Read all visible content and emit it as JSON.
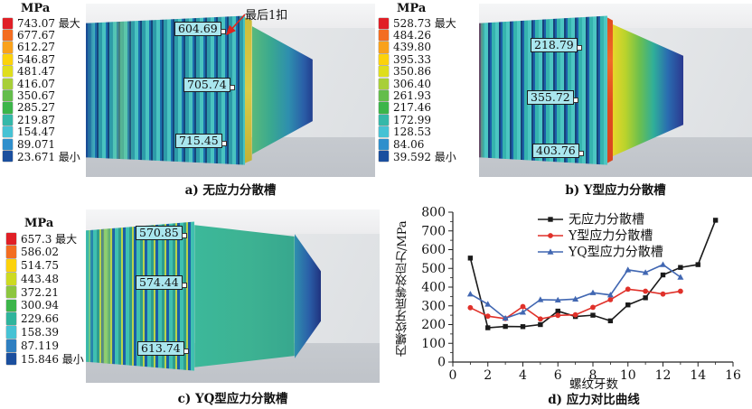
{
  "panels": [
    {
      "id": "a",
      "caption": "a) 无应力分散槽",
      "annotation": "最后1扣",
      "colorbar": {
        "unit": "MPa",
        "entries": [
          {
            "v": "743.07",
            "tag": "最大",
            "c": "#e01f26"
          },
          {
            "v": "677.67",
            "tag": "",
            "c": "#f36d21"
          },
          {
            "v": "612.27",
            "tag": "",
            "c": "#f9a11b"
          },
          {
            "v": "546.87",
            "tag": "",
            "c": "#fcd20b"
          },
          {
            "v": "481.47",
            "tag": "",
            "c": "#dfde1c"
          },
          {
            "v": "416.07",
            "tag": "",
            "c": "#a8cf38"
          },
          {
            "v": "350.67",
            "tag": "",
            "c": "#64bd4b"
          },
          {
            "v": "285.27",
            "tag": "",
            "c": "#3cb54a"
          },
          {
            "v": "219.87",
            "tag": "",
            "c": "#35b8a9"
          },
          {
            "v": "154.47",
            "tag": "",
            "c": "#46c2d4"
          },
          {
            "v": "89.071",
            "tag": "",
            "c": "#2f8fcc"
          },
          {
            "v": "23.671",
            "tag": "最小",
            "c": "#1b4f9e"
          }
        ]
      },
      "probes": [
        "604.69",
        "705.74",
        "715.45"
      ]
    },
    {
      "id": "b",
      "caption": "b) Y型应力分散槽",
      "colorbar": {
        "unit": "MPa",
        "entries": [
          {
            "v": "528.73",
            "tag": "最大",
            "c": "#e01f26"
          },
          {
            "v": "484.26",
            "tag": "",
            "c": "#f36d21"
          },
          {
            "v": "439.80",
            "tag": "",
            "c": "#f9a11b"
          },
          {
            "v": "395.33",
            "tag": "",
            "c": "#fcd20b"
          },
          {
            "v": "350.86",
            "tag": "",
            "c": "#dfde1c"
          },
          {
            "v": "306.40",
            "tag": "",
            "c": "#a8cf38"
          },
          {
            "v": "261.93",
            "tag": "",
            "c": "#64bd4b"
          },
          {
            "v": "217.46",
            "tag": "",
            "c": "#3cb54a"
          },
          {
            "v": "172.99",
            "tag": "",
            "c": "#35b8a9"
          },
          {
            "v": "128.53",
            "tag": "",
            "c": "#46c2d4"
          },
          {
            "v": "84.06",
            "tag": "",
            "c": "#2f8fcc"
          },
          {
            "v": "39.592",
            "tag": "最小",
            "c": "#1b4f9e"
          }
        ]
      },
      "probes": [
        "218.79",
        "355.72",
        "403.76"
      ]
    },
    {
      "id": "c",
      "caption": "c) YQ型应力分散槽",
      "colorbar": {
        "unit": "MPa",
        "entries": [
          {
            "v": "657.3",
            "tag": "最大",
            "c": "#e01f26"
          },
          {
            "v": "586.02",
            "tag": "",
            "c": "#f36d21"
          },
          {
            "v": "514.75",
            "tag": "",
            "c": "#fcd20b"
          },
          {
            "v": "443.48",
            "tag": "",
            "c": "#cdda21"
          },
          {
            "v": "372.21",
            "tag": "",
            "c": "#8cc63f"
          },
          {
            "v": "300.94",
            "tag": "",
            "c": "#3cb54a"
          },
          {
            "v": "229.66",
            "tag": "",
            "c": "#2fb49c"
          },
          {
            "v": "158.39",
            "tag": "",
            "c": "#46c2d4"
          },
          {
            "v": "87.119",
            "tag": "",
            "c": "#2f7fc1"
          },
          {
            "v": "15.846",
            "tag": "最小",
            "c": "#1b4f9e"
          }
        ]
      },
      "probes": [
        "570.85",
        "574.44",
        "613.74"
      ]
    }
  ],
  "chart_caption": "d) 应力对比曲线",
  "chart_data": {
    "type": "line",
    "title": "",
    "xlabel": "螺纹牙数",
    "ylabel": "内螺纹牙底等效应力/MPa",
    "xlim": [
      0,
      16
    ],
    "ylim": [
      0,
      800
    ],
    "xticks": [
      0,
      2,
      4,
      6,
      8,
      10,
      12,
      14,
      16
    ],
    "yticks": [
      0,
      100,
      200,
      300,
      400,
      500,
      600,
      700,
      800
    ],
    "grid": false,
    "legend_position": "top-center-inside",
    "series": [
      {
        "name": "无应力分散槽",
        "color": "#1a1a1a",
        "marker": "square",
        "x": [
          1,
          2,
          3,
          4,
          5,
          6,
          7,
          8,
          9,
          10,
          11,
          12,
          13,
          14,
          15
        ],
        "y": [
          555,
          183,
          190,
          189,
          200,
          272,
          243,
          250,
          220,
          305,
          343,
          465,
          505,
          520,
          757
        ]
      },
      {
        "name": "Y型应力分散槽",
        "color": "#e0312a",
        "marker": "circle",
        "x": [
          1,
          2,
          3,
          4,
          5,
          6,
          7,
          8,
          9,
          10,
          11,
          12,
          13
        ],
        "y": [
          290,
          245,
          232,
          296,
          230,
          249,
          252,
          292,
          333,
          389,
          378,
          363,
          378
        ]
      },
      {
        "name": "YQ型应力分散槽",
        "color": "#4167b2",
        "marker": "triangle",
        "x": [
          1,
          2,
          3,
          4,
          5,
          6,
          7,
          8,
          9,
          10,
          11,
          12,
          13
        ],
        "y": [
          363,
          309,
          234,
          266,
          333,
          331,
          336,
          370,
          358,
          492,
          478,
          520,
          453
        ]
      }
    ]
  }
}
